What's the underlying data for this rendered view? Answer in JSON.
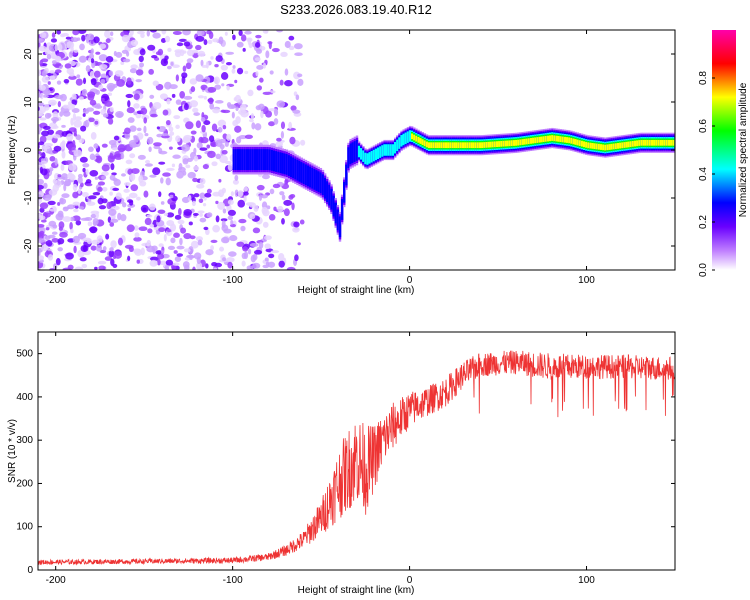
{
  "title": "S233.2026.083.19.40.R12",
  "chart_data": [
    {
      "type": "heatmap",
      "name": "spectrogram",
      "xlabel": "Height of straight line (km)",
      "ylabel": "Frequency (Hz)",
      "xlim": [
        -210,
        150
      ],
      "ylim": [
        -25,
        25
      ],
      "xticks": [
        -200,
        -100,
        0,
        100
      ],
      "xtick_labels": [
        "-200",
        "-100",
        "0",
        "100"
      ],
      "yticks": [
        -20,
        -10,
        0,
        10,
        20
      ],
      "ytick_labels": [
        "-20",
        "-10",
        "0",
        "10",
        "20"
      ],
      "colorbar": {
        "label": "Normalized spectral amplitude",
        "range": [
          0,
          1
        ],
        "ticks": [
          0.0,
          0.2,
          0.4,
          0.6,
          0.8
        ],
        "tick_labels": [
          "0.0",
          "0.2",
          "0.4",
          "0.6",
          "0.8"
        ]
      },
      "ridge": {
        "x": [
          -100,
          -80,
          -70,
          -60,
          -50,
          -45,
          -40,
          -35,
          -30,
          -25,
          -20,
          -15,
          -10,
          -5,
          0,
          5,
          10,
          20,
          40,
          60,
          80,
          90,
          100,
          110,
          120,
          130,
          150
        ],
        "y": [
          -2,
          -2,
          -3,
          -5,
          -7,
          -10,
          -16,
          -1,
          0,
          -2,
          -1,
          0,
          0,
          2,
          3,
          2,
          1,
          1,
          1,
          1.5,
          2.5,
          2,
          1,
          0.5,
          1,
          1.5,
          1.5
        ]
      }
    },
    {
      "type": "line",
      "name": "snr",
      "xlabel": "Height of straight line (km)",
      "ylabel": "SNR (10 * v/v)",
      "xlim": [
        -210,
        150
      ],
      "ylim": [
        0,
        550
      ],
      "xticks": [
        -200,
        -100,
        0,
        100
      ],
      "xtick_labels": [
        "-200",
        "-100",
        "0",
        "100"
      ],
      "yticks": [
        0,
        100,
        200,
        300,
        400,
        500
      ],
      "ytick_labels": [
        "0",
        "100",
        "200",
        "300",
        "400",
        "500"
      ],
      "color": "#ee3333",
      "envelope": {
        "x": [
          -210,
          -150,
          -100,
          -80,
          -70,
          -60,
          -50,
          -40,
          -30,
          -25,
          -20,
          -15,
          -10,
          -5,
          0,
          10,
          20,
          30,
          40,
          60,
          80,
          100,
          120,
          150
        ],
        "mean": [
          18,
          20,
          22,
          30,
          45,
          70,
          120,
          200,
          260,
          230,
          260,
          300,
          330,
          350,
          370,
          390,
          410,
          450,
          475,
          480,
          470,
          470,
          470,
          465
        ],
        "spread": [
          8,
          8,
          10,
          12,
          18,
          30,
          60,
          120,
          150,
          150,
          110,
          90,
          80,
          70,
          60,
          50,
          50,
          45,
          40,
          40,
          45,
          40,
          40,
          40
        ]
      }
    }
  ]
}
